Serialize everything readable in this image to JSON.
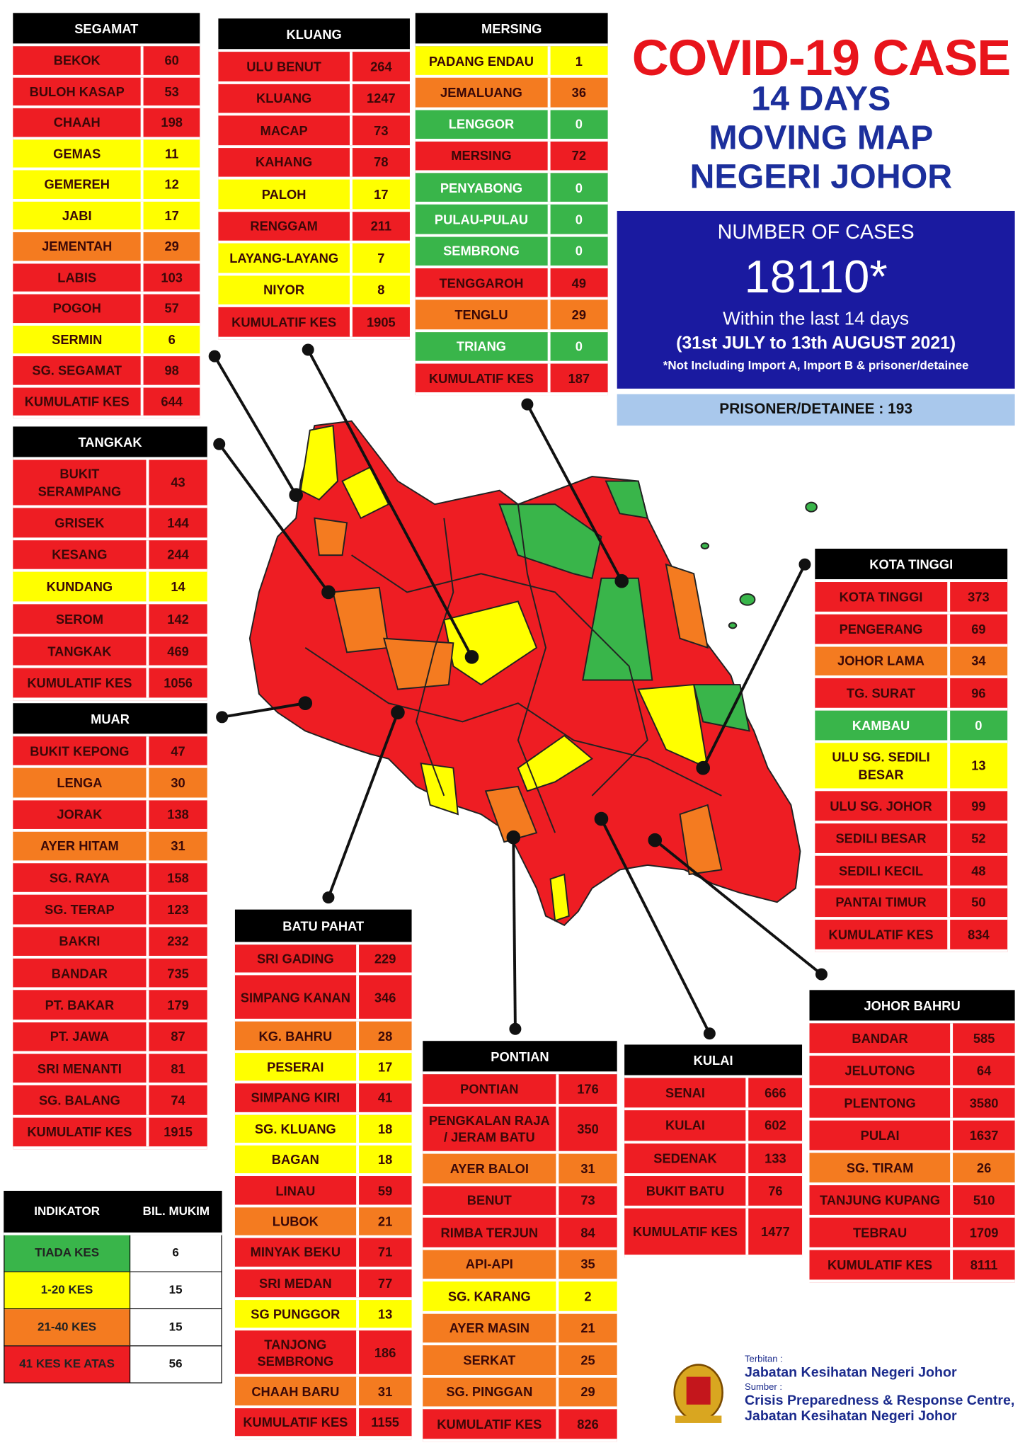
{
  "header": {
    "title": "COVID-19 CASE",
    "subtitle_lines": [
      "14 DAYS",
      "MOVING MAP",
      "NEGERI JOHOR"
    ]
  },
  "summary": {
    "label": "NUMBER OF CASES",
    "total": "18110*",
    "period": "Within the last 14 days",
    "date_range": "(31st JULY to 13th AUGUST 2021)",
    "note": "*Not Including Import A, Import B & prisoner/detainee",
    "prisoner": "PRISONER/DETAINEE : 193"
  },
  "districts": [
    {
      "name": "SEGAMAT",
      "rows": [
        {
          "name": "BEKOK",
          "value": 60,
          "color": "#ee1d23"
        },
        {
          "name": "BULOH KASAP",
          "value": 53,
          "color": "#ee1d23"
        },
        {
          "name": "CHAAH",
          "value": 198,
          "color": "#ee1d23"
        },
        {
          "name": "GEMAS",
          "value": 11,
          "color": "#ffff00"
        },
        {
          "name": "GEMEREH",
          "value": 12,
          "color": "#ffff00"
        },
        {
          "name": "JABI",
          "value": 17,
          "color": "#ffff00"
        },
        {
          "name": "JEMENTAH",
          "value": 29,
          "color": "#f47b20"
        },
        {
          "name": "LABIS",
          "value": 103,
          "color": "#ee1d23"
        },
        {
          "name": "POGOH",
          "value": 57,
          "color": "#ee1d23"
        },
        {
          "name": "SERMIN",
          "value": 6,
          "color": "#ffff00"
        },
        {
          "name": "SG. SEGAMAT",
          "value": 98,
          "color": "#ee1d23"
        }
      ],
      "total_label": "KUMULATIF KES",
      "total": 644
    },
    {
      "name": "KLUANG",
      "rows": [
        {
          "name": "ULU BENUT",
          "value": 264,
          "color": "#ee1d23"
        },
        {
          "name": "KLUANG",
          "value": 1247,
          "color": "#ee1d23"
        },
        {
          "name": "MACAP",
          "value": 73,
          "color": "#ee1d23"
        },
        {
          "name": "KAHANG",
          "value": 78,
          "color": "#ee1d23"
        },
        {
          "name": "PALOH",
          "value": 17,
          "color": "#ffff00"
        },
        {
          "name": "RENGGAM",
          "value": 211,
          "color": "#ee1d23"
        },
        {
          "name": "LAYANG-LAYANG",
          "value": 7,
          "color": "#ffff00"
        },
        {
          "name": "NIYOR",
          "value": 8,
          "color": "#ffff00"
        }
      ],
      "total_label": "KUMULATIF KES",
      "total": 1905
    },
    {
      "name": "MERSING",
      "rows": [
        {
          "name": "PADANG ENDAU",
          "value": 1,
          "color": "#ffff00"
        },
        {
          "name": "JEMALUANG",
          "value": 36,
          "color": "#f47b20"
        },
        {
          "name": "LENGGOR",
          "value": 0,
          "color": "#39b54a"
        },
        {
          "name": "MERSING",
          "value": 72,
          "color": "#ee1d23"
        },
        {
          "name": "PENYABONG",
          "value": 0,
          "color": "#39b54a"
        },
        {
          "name": "PULAU-PULAU",
          "value": 0,
          "color": "#39b54a"
        },
        {
          "name": "SEMBRONG",
          "value": 0,
          "color": "#39b54a"
        },
        {
          "name": "TENGGAROH",
          "value": 49,
          "color": "#ee1d23"
        },
        {
          "name": "TENGLU",
          "value": 29,
          "color": "#f47b20"
        },
        {
          "name": "TRIANG",
          "value": 0,
          "color": "#39b54a"
        }
      ],
      "total_label": "KUMULATIF KES",
      "total": 187
    },
    {
      "name": "TANGKAK",
      "rows": [
        {
          "name": "BUKIT SERAMPANG",
          "value": 43,
          "color": "#ee1d23"
        },
        {
          "name": "GRISEK",
          "value": 144,
          "color": "#ee1d23"
        },
        {
          "name": "KESANG",
          "value": 244,
          "color": "#ee1d23"
        },
        {
          "name": "KUNDANG",
          "value": 14,
          "color": "#ffff00"
        },
        {
          "name": "SEROM",
          "value": 142,
          "color": "#ee1d23"
        },
        {
          "name": "TANGKAK",
          "value": 469,
          "color": "#ee1d23"
        }
      ],
      "total_label": "KUMULATIF KES",
      "total": 1056
    },
    {
      "name": "MUAR",
      "rows": [
        {
          "name": "BUKIT KEPONG",
          "value": 47,
          "color": "#ee1d23"
        },
        {
          "name": "LENGA",
          "value": 30,
          "color": "#f47b20"
        },
        {
          "name": "JORAK",
          "value": 138,
          "color": "#ee1d23"
        },
        {
          "name": "AYER HITAM",
          "value": 31,
          "color": "#f47b20"
        },
        {
          "name": "SG. RAYA",
          "value": 158,
          "color": "#ee1d23"
        },
        {
          "name": "SG. TERAP",
          "value": 123,
          "color": "#ee1d23"
        },
        {
          "name": "BAKRI",
          "value": 232,
          "color": "#ee1d23"
        },
        {
          "name": "BANDAR",
          "value": 735,
          "color": "#ee1d23"
        },
        {
          "name": "PT. BAKAR",
          "value": 179,
          "color": "#ee1d23"
        },
        {
          "name": "PT. JAWA",
          "value": 87,
          "color": "#ee1d23"
        },
        {
          "name": "SRI MENANTI",
          "value": 81,
          "color": "#ee1d23"
        },
        {
          "name": "SG. BALANG",
          "value": 74,
          "color": "#ee1d23"
        }
      ],
      "total_label": "KUMULATIF KES",
      "total": 1915
    },
    {
      "name": "BATU PAHAT",
      "rows": [
        {
          "name": "SRI GADING",
          "value": 229,
          "color": "#ee1d23"
        },
        {
          "name": "SIMPANG KANAN",
          "value": 346,
          "color": "#ee1d23"
        },
        {
          "name": "KG. BAHRU",
          "value": 28,
          "color": "#f47b20"
        },
        {
          "name": "PESERAI",
          "value": 17,
          "color": "#ffff00"
        },
        {
          "name": "SIMPANG KIRI",
          "value": 41,
          "color": "#ee1d23"
        },
        {
          "name": "SG. KLUANG",
          "value": 18,
          "color": "#ffff00"
        },
        {
          "name": "BAGAN",
          "value": 18,
          "color": "#ffff00"
        },
        {
          "name": "LINAU",
          "value": 59,
          "color": "#ee1d23"
        },
        {
          "name": "LUBOK",
          "value": 21,
          "color": "#f47b20"
        },
        {
          "name": "MINYAK BEKU",
          "value": 71,
          "color": "#ee1d23"
        },
        {
          "name": "SRI MEDAN",
          "value": 77,
          "color": "#ee1d23"
        },
        {
          "name": "SG PUNGGOR",
          "value": 13,
          "color": "#ffff00"
        },
        {
          "name": "TANJONG SEMBRONG",
          "value": 186,
          "color": "#ee1d23"
        },
        {
          "name": "CHAAH BARU",
          "value": 31,
          "color": "#f47b20"
        }
      ],
      "total_label": "KUMULATIF KES",
      "total": 1155
    },
    {
      "name": "KOTA TINGGI",
      "rows": [
        {
          "name": "KOTA TINGGI",
          "value": 373,
          "color": "#ee1d23"
        },
        {
          "name": "PENGERANG",
          "value": 69,
          "color": "#ee1d23"
        },
        {
          "name": "JOHOR LAMA",
          "value": 34,
          "color": "#f47b20"
        },
        {
          "name": "TG. SURAT",
          "value": 96,
          "color": "#ee1d23"
        },
        {
          "name": "KAMBAU",
          "value": 0,
          "color": "#39b54a"
        },
        {
          "name": "ULU SG. SEDILI BESAR",
          "value": 13,
          "color": "#ffff00"
        },
        {
          "name": "ULU SG. JOHOR",
          "value": 99,
          "color": "#ee1d23"
        },
        {
          "name": "SEDILI BESAR",
          "value": 52,
          "color": "#ee1d23"
        },
        {
          "name": "SEDILI KECIL",
          "value": 48,
          "color": "#ee1d23"
        },
        {
          "name": "PANTAI TIMUR",
          "value": 50,
          "color": "#ee1d23"
        }
      ],
      "total_label": "KUMULATIF KES",
      "total": 834
    },
    {
      "name": "JOHOR BAHRU",
      "rows": [
        {
          "name": "BANDAR",
          "value": 585,
          "color": "#ee1d23"
        },
        {
          "name": "JELUTONG",
          "value": 64,
          "color": "#ee1d23"
        },
        {
          "name": "PLENTONG",
          "value": 3580,
          "color": "#ee1d23"
        },
        {
          "name": "PULAI",
          "value": 1637,
          "color": "#ee1d23"
        },
        {
          "name": "SG. TIRAM",
          "value": 26,
          "color": "#f47b20"
        },
        {
          "name": "TANJUNG KUPANG",
          "value": 510,
          "color": "#ee1d23"
        },
        {
          "name": "TEBRAU",
          "value": 1709,
          "color": "#ee1d23"
        }
      ],
      "total_label": "KUMULATIF KES",
      "total": 8111
    },
    {
      "name": "PONTIAN",
      "rows": [
        {
          "name": "PONTIAN",
          "value": 176,
          "color": "#ee1d23"
        },
        {
          "name": "PENGKALAN RAJA / JERAM BATU",
          "value": 350,
          "color": "#ee1d23"
        },
        {
          "name": "AYER BALOI",
          "value": 31,
          "color": "#f47b20"
        },
        {
          "name": "BENUT",
          "value": 73,
          "color": "#ee1d23"
        },
        {
          "name": "RIMBA TERJUN",
          "value": 84,
          "color": "#ee1d23"
        },
        {
          "name": "API-API",
          "value": 35,
          "color": "#f47b20"
        },
        {
          "name": "SG. KARANG",
          "value": 2,
          "color": "#ffff00"
        },
        {
          "name": "AYER MASIN",
          "value": 21,
          "color": "#f47b20"
        },
        {
          "name": "SERKAT",
          "value": 25,
          "color": "#f47b20"
        },
        {
          "name": "SG. PINGGAN",
          "value": 29,
          "color": "#f47b20"
        }
      ],
      "total_label": "KUMULATIF KES",
      "total": 826
    },
    {
      "name": "KULAI",
      "rows": [
        {
          "name": "SENAI",
          "value": 666,
          "color": "#ee1d23"
        },
        {
          "name": "KULAI",
          "value": 602,
          "color": "#ee1d23"
        },
        {
          "name": "SEDENAK",
          "value": 133,
          "color": "#ee1d23"
        },
        {
          "name": "BUKIT BATU",
          "value": 76,
          "color": "#ee1d23"
        }
      ],
      "total_label": "KUMULATIF KES",
      "total": 1477
    }
  ],
  "legend": {
    "headers": [
      "INDIKATOR",
      "BIL. MUKIM"
    ],
    "items": [
      {
        "label": "TIADA KES",
        "count": 6,
        "color": "#39b54a"
      },
      {
        "label": "1-20 KES",
        "count": 15,
        "color": "#ffff00"
      },
      {
        "label": "21-40 KES",
        "count": 15,
        "color": "#f47b20"
      },
      {
        "label": "41 KES KE ATAS",
        "count": 56,
        "color": "#ee1d23"
      }
    ]
  },
  "footer": {
    "published_label": "Terbitan :",
    "publisher": "Jabatan Kesihatan Negeri Johor",
    "source_label": "Sumber :",
    "source_lines": [
      "Crisis Preparedness & Response Centre,",
      "Jabatan Kesihatan Negeri Johor"
    ]
  }
}
